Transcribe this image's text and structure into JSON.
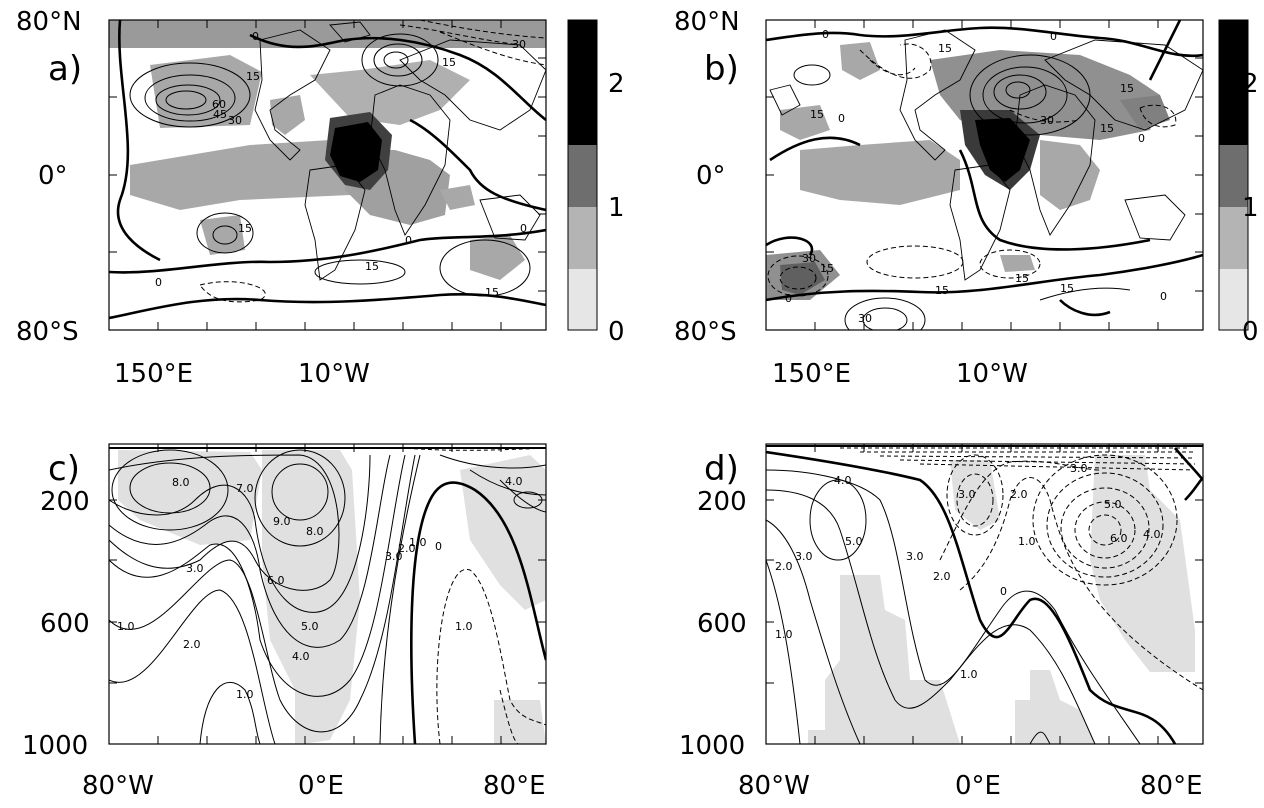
{
  "chart_data": [
    {
      "panel": "a)",
      "type": "map",
      "y_ticks": [
        "80°N",
        "0°",
        "80°S"
      ],
      "x_ticks": [
        "150°E",
        "10°W"
      ],
      "colorbar_ticks": [
        "2",
        "1",
        "0"
      ],
      "colorbar_levels": [
        0,
        1,
        2
      ],
      "contour_labels": [
        "0",
        "15",
        "30",
        "45",
        "60",
        "15",
        "30",
        "15",
        "0",
        "15",
        "15",
        "0",
        "0"
      ]
    },
    {
      "panel": "b)",
      "type": "map",
      "y_ticks": [
        "80°N",
        "0°",
        "80°S"
      ],
      "x_ticks": [
        "150°E",
        "10°W"
      ],
      "colorbar_ticks": [
        "2",
        "1",
        "0"
      ],
      "colorbar_levels": [
        0,
        1,
        2
      ],
      "contour_labels": [
        "0",
        "15",
        "0",
        "15",
        "15",
        "30",
        "15",
        "0",
        "30",
        "15",
        "0",
        "15",
        "15",
        "30",
        "15",
        "0",
        "0"
      ]
    },
    {
      "panel": "c)",
      "type": "contour",
      "y_ticks": [
        "200",
        "600",
        "1000"
      ],
      "x_ticks": [
        "80°W",
        "0°E",
        "80°E"
      ],
      "contour_labels": [
        "8.0",
        "7.0",
        "9.0",
        "8.0",
        "4.0",
        "3.0",
        "6.0",
        "3.0",
        "2.0",
        "1.0",
        "0",
        "5.0",
        "1.0",
        "1.0",
        "2.0",
        "4.0",
        "1.0"
      ]
    },
    {
      "panel": "d)",
      "type": "contour",
      "y_ticks": [
        "200",
        "600",
        "1000"
      ],
      "x_ticks": [
        "80°W",
        "0°E",
        "80°E"
      ],
      "contour_labels": [
        "3.0",
        "4.0",
        "3.0",
        "2.0",
        "5.0",
        "5.0",
        "6.0",
        "4.0",
        "2.0",
        "3.0",
        "3.0",
        "1.0",
        "2.0",
        "0",
        "1.0",
        "1.0"
      ]
    }
  ]
}
